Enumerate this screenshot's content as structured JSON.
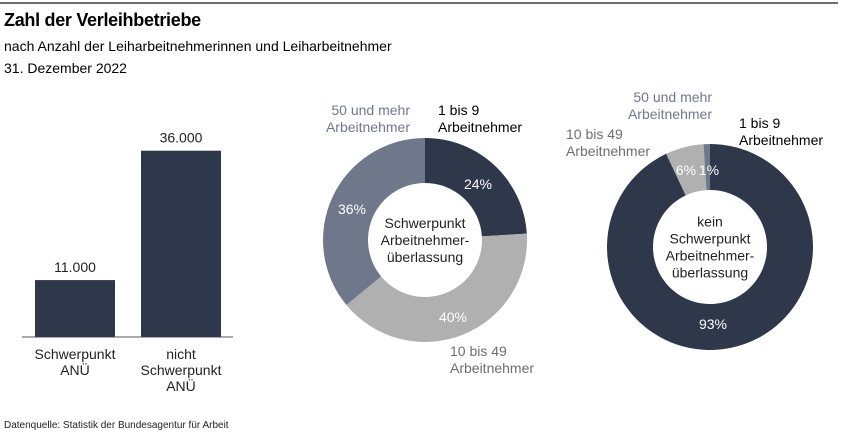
{
  "header": {
    "title": "Zahl der Verleihbetriebe",
    "subtitle": "nach Anzahl der Leiharbeitnehmerinnen und Leiharbeitnehmer",
    "date": "31. Dezember 2022"
  },
  "footer": {
    "source": "Datenquelle: Statistik der Bundesagentur für Arbeit"
  },
  "colors": {
    "dark": "#2f374b",
    "mid": "#6f788b",
    "light": "#b0b0b0",
    "axis": "#555555"
  },
  "chart_data": [
    {
      "type": "bar",
      "title": "",
      "xlabel": "",
      "ylabel": "",
      "categories": [
        [
          "Schwerpunkt",
          "ANÜ"
        ],
        [
          "nicht",
          "Schwerpunkt",
          "ANÜ"
        ]
      ],
      "values": [
        11000,
        36000
      ],
      "value_labels": [
        "11.000",
        "36.000"
      ],
      "ylim": [
        0,
        40000
      ],
      "grid": false
    },
    {
      "type": "pie",
      "donut": true,
      "center_label": [
        "Schwerpunkt",
        "Arbeitnehmer-",
        "überlassung"
      ],
      "slices": [
        {
          "name": [
            "1 bis 9",
            "Arbeitnehmer"
          ],
          "value": 24,
          "label": "24%",
          "color": "#2f374b",
          "name_color": "#000000"
        },
        {
          "name": [
            "10 bis 49",
            "Arbeitnehmer"
          ],
          "value": 40,
          "label": "40%",
          "color": "#b0b0b0",
          "name_color": "#6e6e6e"
        },
        {
          "name": [
            "50 und mehr",
            "Arbeitnehmer"
          ],
          "value": 36,
          "label": "36%",
          "color": "#6f788b",
          "name_color": "#6f788b"
        }
      ]
    },
    {
      "type": "pie",
      "donut": true,
      "center_label": [
        "kein",
        "Schwerpunkt",
        "Arbeitnehmer-",
        "überlassung"
      ],
      "slices": [
        {
          "name": [
            "1 bis 9",
            "Arbeitnehmer"
          ],
          "value": 93,
          "label": "93%",
          "color": "#2f374b",
          "name_color": "#000000"
        },
        {
          "name": [
            "10 bis 49",
            "Arbeitnehmer"
          ],
          "value": 6,
          "label": "6%",
          "color": "#b0b0b0",
          "name_color": "#6e6e6e"
        },
        {
          "name": [
            "50 und mehr",
            "Arbeitnehmer"
          ],
          "value": 1,
          "label": "1%",
          "color": "#6f788b",
          "name_color": "#6f788b"
        }
      ]
    }
  ]
}
